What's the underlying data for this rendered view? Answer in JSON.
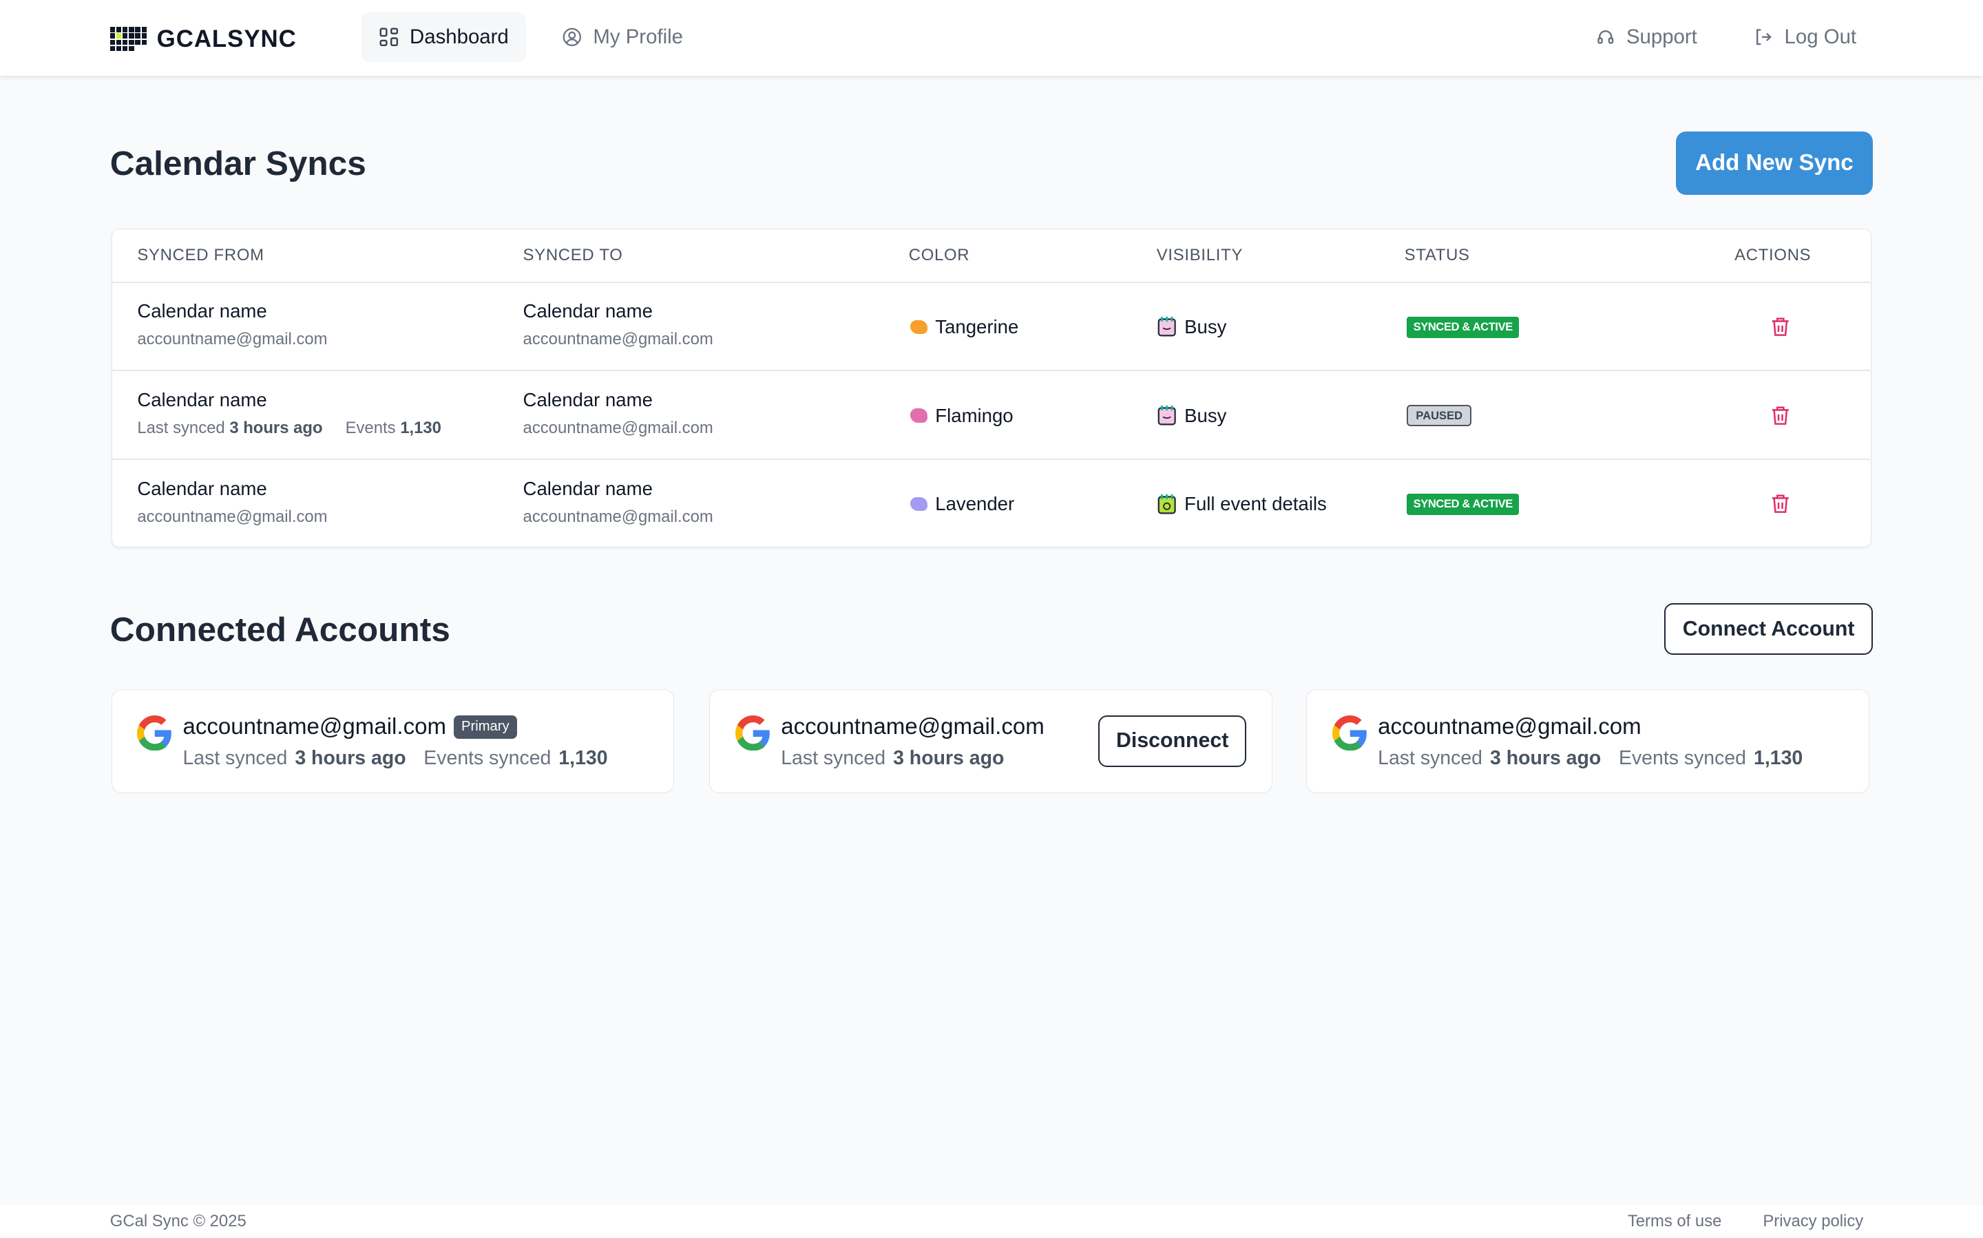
{
  "header": {
    "brand": "GCALSYNC",
    "nav": [
      {
        "label": "Dashboard",
        "icon": "dashboard-grid-icon",
        "active": true
      },
      {
        "label": "My Profile",
        "icon": "user-circle-icon"
      }
    ],
    "right": [
      {
        "label": "Support",
        "icon": "headset-icon"
      },
      {
        "label": "Log Out",
        "icon": "logout-icon"
      }
    ]
  },
  "syncs": {
    "title": "Calendar Syncs",
    "add_button": "Add New Sync",
    "columns": [
      "SYNCED FROM",
      "SYNCED TO",
      "COLOR",
      "VISIBILITY",
      "STATUS",
      "ACTIONS"
    ],
    "rows": [
      {
        "from_name": "Calendar name",
        "from_email": "accountname@gmail.com",
        "to_name": "Calendar name",
        "to_email": "accountname@gmail.com",
        "color": "Tangerine",
        "color_hex": "#f6a02b",
        "visibility": "Busy",
        "status": "SYNCED & ACTIVE"
      },
      {
        "from_name": "Calendar name",
        "from_last_label": "Last synced",
        "from_last_value": "3 hours ago",
        "from_events_label": "Events",
        "from_events_value": "1,130",
        "to_name": "Calendar name",
        "to_email": "accountname@gmail.com",
        "color": "Flamingo",
        "color_hex": "#e36fb0",
        "visibility": "Busy",
        "status": "PAUSED"
      },
      {
        "from_name": "Calendar name",
        "from_email": "accountname@gmail.com",
        "to_name": "Calendar name",
        "to_email": "accountname@gmail.com",
        "color": "Lavender",
        "color_hex": "#a59aef",
        "visibility": "Full event details",
        "status": "SYNCED & ACTIVE"
      }
    ]
  },
  "accounts": {
    "title": "Connected Accounts",
    "connect_button": "Connect Account",
    "cards": [
      {
        "email": "accountname@gmail.com",
        "badge": "Primary",
        "last_label": "Last synced",
        "last_value": "3 hours ago",
        "events_label": "Events synced",
        "events_value": "1,130"
      },
      {
        "email": "accountname@gmail.com",
        "last_label": "Last synced",
        "last_value": "3 hours ago",
        "button": "Disconnect"
      },
      {
        "email": "accountname@gmail.com",
        "last_label": "Last synced",
        "last_value": "3 hours ago",
        "events_label": "Events synced",
        "events_value": "1,130"
      }
    ]
  },
  "footer": {
    "copyright": "GCal Sync © 2025",
    "links": [
      "Terms of use",
      "Privacy policy"
    ]
  }
}
